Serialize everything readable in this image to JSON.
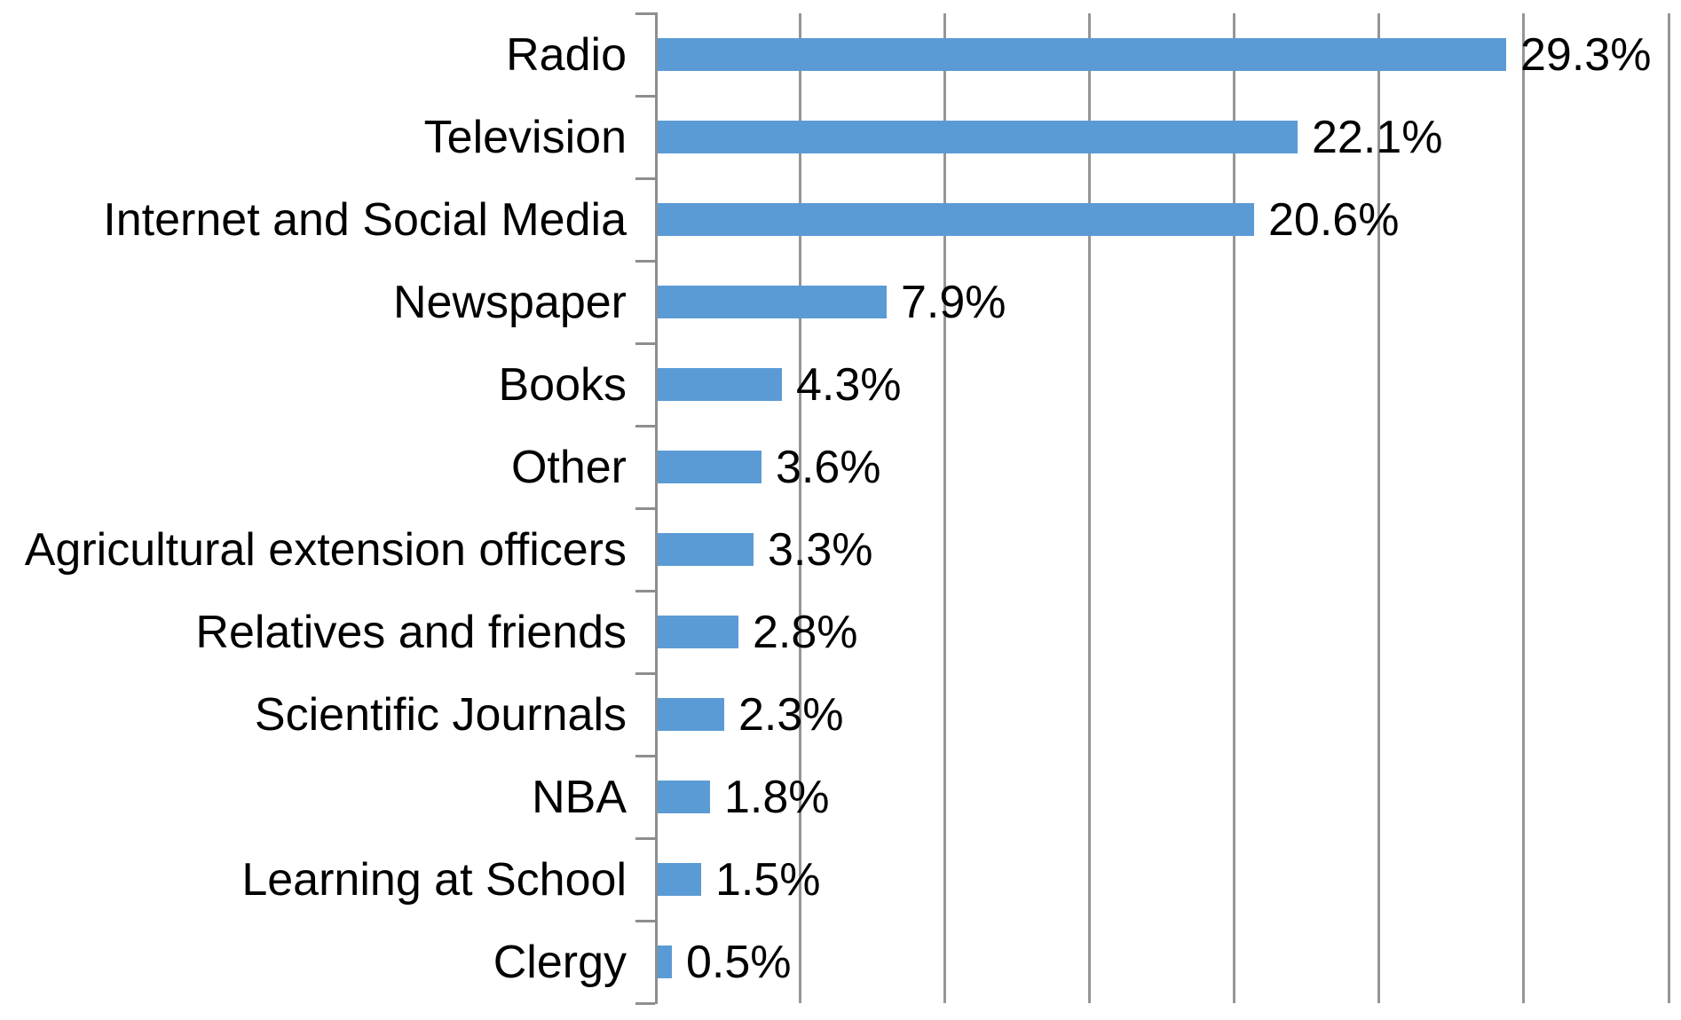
{
  "chart_data": {
    "type": "bar",
    "orientation": "horizontal",
    "title": "",
    "xlabel": "",
    "ylabel": "",
    "categories": [
      "Radio",
      "Television",
      "Internet and Social Media",
      "Newspaper",
      "Books",
      "Other",
      "Agricultural extension officers",
      "Relatives and friends",
      "Scientific Journals",
      "NBA",
      "Learning at School",
      "Clergy"
    ],
    "values": [
      29.3,
      22.1,
      20.6,
      7.9,
      4.3,
      3.6,
      3.3,
      2.8,
      2.3,
      1.8,
      1.5,
      0.5
    ],
    "value_labels": [
      "29.3%",
      "22.1%",
      "20.6%",
      "7.9%",
      "4.3%",
      "3.6%",
      "3.3%",
      "2.8%",
      "2.3%",
      "1.8%",
      "1.5%",
      "0.5%"
    ],
    "xlim": [
      0,
      35
    ],
    "gridline_step": 5,
    "grid": true,
    "legend": false,
    "axis_tick_labels_visible": false,
    "colors": {
      "bar": "#5B9BD5",
      "gridline": "#969696",
      "axis": "#8E8E8E",
      "text": "#000000",
      "background": "#FFFFFF"
    }
  }
}
